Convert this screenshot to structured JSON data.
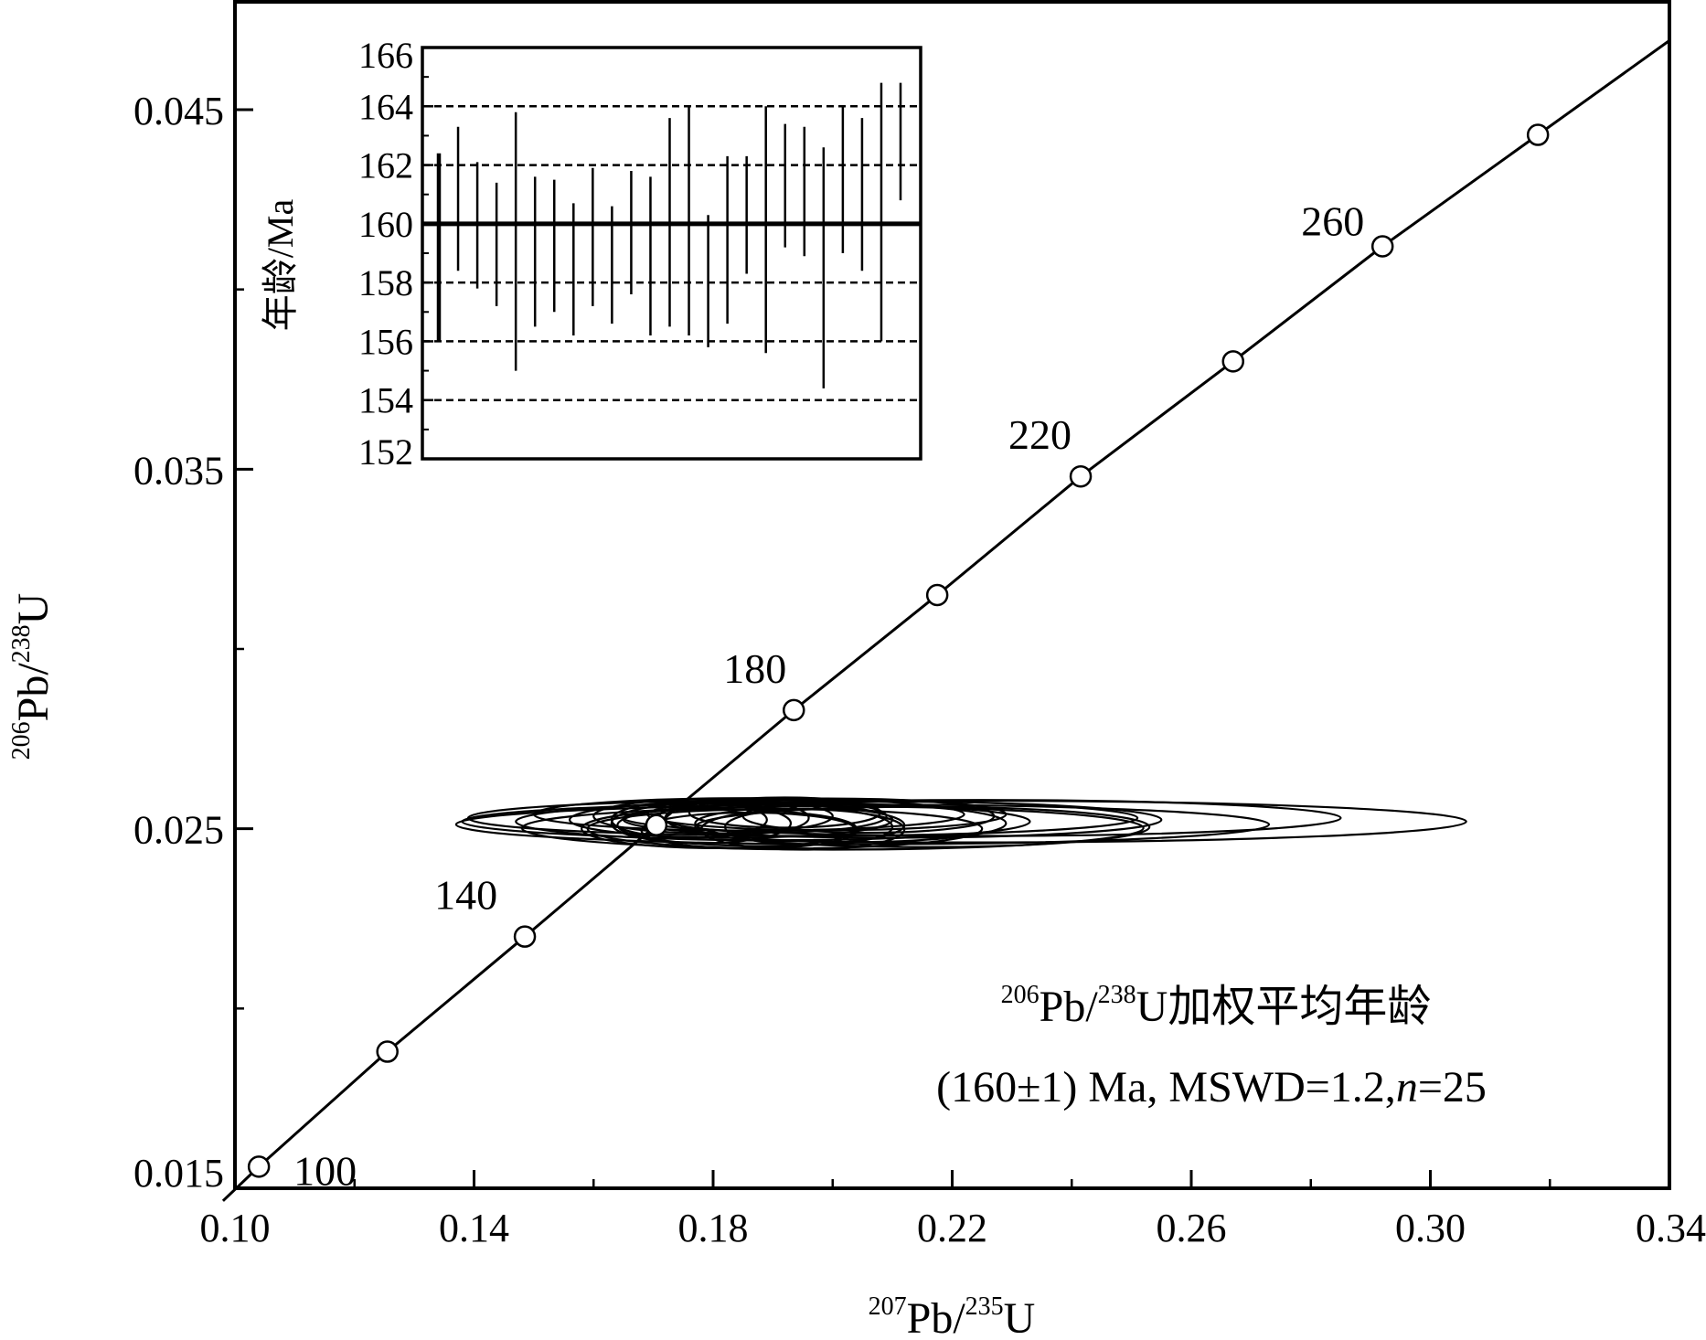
{
  "chart_data": {
    "type": "scatter",
    "subtype": "U-Pb concordia diagram with inset weighted-mean age plot",
    "xlabel": {
      "sup1": "207",
      "base1": "Pb/",
      "sup2": "235",
      "base2": "U"
    },
    "ylabel": {
      "sup1": "206",
      "base1": "Pb/",
      "sup2": "238",
      "base2": "U"
    },
    "xlim": [
      0.1,
      0.34
    ],
    "ylim": [
      0.015,
      0.048
    ],
    "x_ticks": [
      0.1,
      0.14,
      0.18,
      0.22,
      0.26,
      0.3,
      0.34
    ],
    "x_tick_labels": [
      "0.10",
      "0.14",
      "0.18",
      "0.22",
      "0.26",
      "0.30",
      "0.34"
    ],
    "y_ticks": [
      0.015,
      0.025,
      0.035,
      0.045
    ],
    "y_tick_labels": [
      "0.015",
      "0.025",
      "0.035",
      "0.045"
    ],
    "concordia_points": [
      {
        "age": 100,
        "x": 0.104,
        "y": 0.0156
      },
      {
        "age": 120,
        "x": 0.1255,
        "y": 0.0188
      },
      {
        "age": 140,
        "x": 0.1485,
        "y": 0.022
      },
      {
        "age": 160,
        "x": 0.1705,
        "y": 0.0251
      },
      {
        "age": 180,
        "x": 0.1935,
        "y": 0.0283
      },
      {
        "age": 200,
        "x": 0.2175,
        "y": 0.0315
      },
      {
        "age": 220,
        "x": 0.2415,
        "y": 0.0348
      },
      {
        "age": 240,
        "x": 0.267,
        "y": 0.038
      },
      {
        "age": 260,
        "x": 0.292,
        "y": 0.0412
      },
      {
        "age": 280,
        "x": 0.318,
        "y": 0.0443
      }
    ],
    "concordia_age_labels": [
      "100",
      "140",
      "180",
      "220",
      "260"
    ],
    "ellipses": [
      {
        "cx": 0.222,
        "cy": 0.0252,
        "rx": 0.084,
        "ry": 0.00058
      },
      {
        "cx": 0.205,
        "cy": 0.02512,
        "rx": 0.068,
        "ry": 0.00055
      },
      {
        "cx": 0.195,
        "cy": 0.0253,
        "rx": 0.056,
        "ry": 0.0005
      },
      {
        "cx": 0.2,
        "cy": 0.02502,
        "rx": 0.052,
        "ry": 0.0006
      },
      {
        "cx": 0.19,
        "cy": 0.0252,
        "rx": 0.043,
        "ry": 0.00052
      },
      {
        "cx": 0.186,
        "cy": 0.0254,
        "rx": 0.036,
        "ry": 0.00045
      },
      {
        "cx": 0.192,
        "cy": 0.025,
        "rx": 0.033,
        "ry": 0.00055
      },
      {
        "cx": 0.183,
        "cy": 0.02525,
        "rx": 0.027,
        "ry": 0.0005
      },
      {
        "cx": 0.188,
        "cy": 0.0251,
        "rx": 0.024,
        "ry": 0.00058
      },
      {
        "cx": 0.18,
        "cy": 0.02535,
        "rx": 0.02,
        "ry": 0.00048
      },
      {
        "cx": 0.186,
        "cy": 0.02495,
        "rx": 0.018,
        "ry": 0.0005
      },
      {
        "cx": 0.192,
        "cy": 0.02545,
        "rx": 0.016,
        "ry": 0.00042
      },
      {
        "cx": 0.178,
        "cy": 0.02515,
        "rx": 0.015,
        "ry": 0.00055
      },
      {
        "cx": 0.196,
        "cy": 0.02505,
        "rx": 0.014,
        "ry": 0.0005
      },
      {
        "cx": 0.184,
        "cy": 0.0253,
        "rx": 0.012,
        "ry": 0.00046
      },
      {
        "cx": 0.21,
        "cy": 0.02525,
        "rx": 0.045,
        "ry": 0.0005
      },
      {
        "cx": 0.215,
        "cy": 0.02505,
        "rx": 0.038,
        "ry": 0.00056
      },
      {
        "cx": 0.199,
        "cy": 0.0254,
        "rx": 0.03,
        "ry": 0.00044
      },
      {
        "cx": 0.181,
        "cy": 0.025,
        "rx": 0.023,
        "ry": 0.00054
      },
      {
        "cx": 0.19,
        "cy": 0.02535,
        "rx": 0.019,
        "ry": 0.00045
      },
      {
        "cx": 0.203,
        "cy": 0.02515,
        "rx": 0.026,
        "ry": 0.00052
      },
      {
        "cx": 0.176,
        "cy": 0.02525,
        "rx": 0.013,
        "ry": 0.0005
      },
      {
        "cx": 0.206,
        "cy": 0.02535,
        "rx": 0.021,
        "ry": 0.00046
      },
      {
        "cx": 0.195,
        "cy": 0.02498,
        "rx": 0.017,
        "ry": 0.00056
      },
      {
        "cx": 0.225,
        "cy": 0.0253,
        "rx": 0.06,
        "ry": 0.0005
      }
    ],
    "annotation": {
      "line1_sup1": "206",
      "line1_base1": "Pb/",
      "line1_sup2": "238",
      "line1_rest": "U加权平均年龄",
      "line2_a": "(160±1) Ma, MSWD=1.2,",
      "line2_n": "n",
      "line2_b": "=25"
    },
    "inset": {
      "type": "error-bar",
      "ylabel": "年龄/Ma",
      "ylim": [
        152,
        166
      ],
      "y_ticks": [
        152,
        154,
        156,
        158,
        160,
        162,
        164,
        166
      ],
      "y_tick_labels": [
        "152",
        "154",
        "156",
        "158",
        "160",
        "162",
        "164",
        "166"
      ],
      "dashed_grid_at": [
        154,
        156,
        158,
        162,
        164
      ],
      "mean_age": 160,
      "mean_band": [
        159.9,
        160.1
      ],
      "bars": [
        [
          156.0,
          162.4
        ],
        [
          158.4,
          163.3
        ],
        [
          157.8,
          162.1
        ],
        [
          157.2,
          161.4
        ],
        [
          155.0,
          163.8
        ],
        [
          156.5,
          161.6
        ],
        [
          157.0,
          161.5
        ],
        [
          156.2,
          160.7
        ],
        [
          157.2,
          161.9
        ],
        [
          156.6,
          160.6
        ],
        [
          157.6,
          161.8
        ],
        [
          156.2,
          161.6
        ],
        [
          156.5,
          163.6
        ],
        [
          156.2,
          164.0
        ],
        [
          155.8,
          160.3
        ],
        [
          156.6,
          162.3
        ],
        [
          158.3,
          162.3
        ],
        [
          155.6,
          164.0
        ],
        [
          159.2,
          163.4
        ],
        [
          158.9,
          163.3
        ],
        [
          154.4,
          162.6
        ],
        [
          159.0,
          164.0
        ],
        [
          158.4,
          163.6
        ],
        [
          156.0,
          164.8
        ],
        [
          160.8,
          164.8
        ]
      ]
    }
  }
}
